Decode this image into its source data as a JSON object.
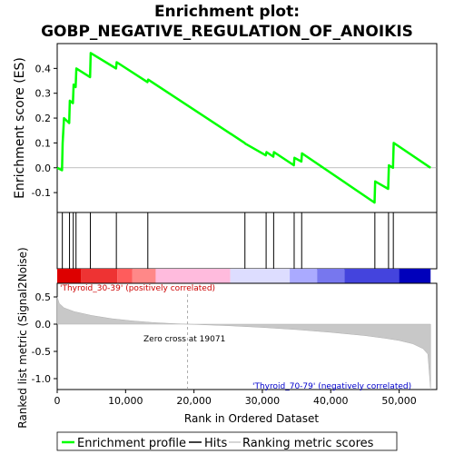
{
  "chart_data": {
    "type": "line",
    "title_line1": "Enrichment plot:",
    "title_line2": "GOBP_NEGATIVE_REGULATION_OF_ANOIKIS",
    "es_panel": {
      "ylabel": "Enrichment score (ES)",
      "ylim": [
        -0.18,
        0.5
      ],
      "yticks": [
        -0.1,
        0.0,
        0.1,
        0.2,
        0.3,
        0.4
      ],
      "ytick_labels": [
        "-0.1",
        "0.0",
        "0.1",
        "0.2",
        "0.3",
        "0.4"
      ],
      "series": [
        {
          "name": "Enrichment profile",
          "color": "#00ff00",
          "x": [
            0,
            700,
            800,
            1000,
            1750,
            1850,
            2300,
            2400,
            2700,
            2800,
            4800,
            4900,
            8600,
            8700,
            13200,
            13300,
            27400,
            27500,
            30500,
            30600,
            31600,
            31700,
            34600,
            34700,
            35700,
            35800,
            46400,
            46500,
            48400,
            48500,
            49100,
            49200,
            54600
          ],
          "y": [
            0.0,
            -0.01,
            0.1,
            0.2,
            0.18,
            0.27,
            0.26,
            0.335,
            0.325,
            0.4,
            0.365,
            0.462,
            0.4,
            0.425,
            0.345,
            0.355,
            0.1,
            0.097,
            0.05,
            0.063,
            0.045,
            0.063,
            0.01,
            0.04,
            0.025,
            0.058,
            -0.14,
            -0.055,
            -0.085,
            0.01,
            0.0,
            0.1,
            0.0
          ]
        }
      ]
    },
    "hits": [
      750,
      1800,
      2350,
      2750,
      4850,
      8650,
      13250,
      27450,
      30550,
      31650,
      34650,
      35750,
      46450,
      48450,
      49150
    ],
    "heat_bar": {
      "colors": [
        "#dd0000",
        "#ee3333",
        "#ff5c5c",
        "#ff8888",
        "#ffbbdd",
        "#ddddff",
        "#aaaaff",
        "#7777ee",
        "#4444dd",
        "#0000bb"
      ],
      "boundaries": [
        0,
        3500,
        8800,
        11000,
        14400,
        25300,
        34000,
        38000,
        42000,
        50000,
        54600
      ]
    },
    "metric_panel": {
      "ylabel": "Ranked list metric (Signal2Noise)",
      "ylim": [
        -1.2,
        0.75
      ],
      "yticks": [
        -1.0,
        -0.5,
        0.0,
        0.5
      ],
      "ytick_labels": [
        "-1.0",
        "-0.5",
        "0.0",
        "0.5"
      ],
      "positive_label": "'Thyroid_30-39' (positively correlated)",
      "negative_label": "'Thyroid_70-79' (negatively correlated)",
      "zero_cross_label": "Zero cross at 19071",
      "zero_cross": 19071,
      "profile_x": [
        0,
        300,
        1000,
        2500,
        5000,
        8000,
        11000,
        14000,
        17000,
        19071,
        25300,
        30000,
        35000,
        40000,
        45000,
        48000,
        50000,
        52000,
        53500,
        54200,
        54600
      ],
      "profile_y": [
        0.5,
        0.38,
        0.3,
        0.23,
        0.16,
        0.1,
        0.06,
        0.03,
        0.01,
        0.0,
        -0.03,
        -0.06,
        -0.1,
        -0.15,
        -0.21,
        -0.26,
        -0.3,
        -0.36,
        -0.45,
        -0.55,
        -1.2
      ]
    },
    "xaxis": {
      "label": "Rank in Ordered Dataset",
      "xlim": [
        0,
        55500
      ],
      "xticks": [
        0,
        10000,
        20000,
        30000,
        40000,
        50000
      ],
      "xtick_labels": [
        "0",
        "10,000",
        "20,000",
        "30,000",
        "40,000",
        "50,000"
      ]
    },
    "legend": {
      "placement": "bottom",
      "items": [
        {
          "label": "Enrichment profile",
          "color": "#00ff00"
        },
        {
          "label": "Hits",
          "color": "#000000"
        },
        {
          "label": "Ranking metric scores",
          "color": "#c8c8c8"
        }
      ]
    }
  }
}
